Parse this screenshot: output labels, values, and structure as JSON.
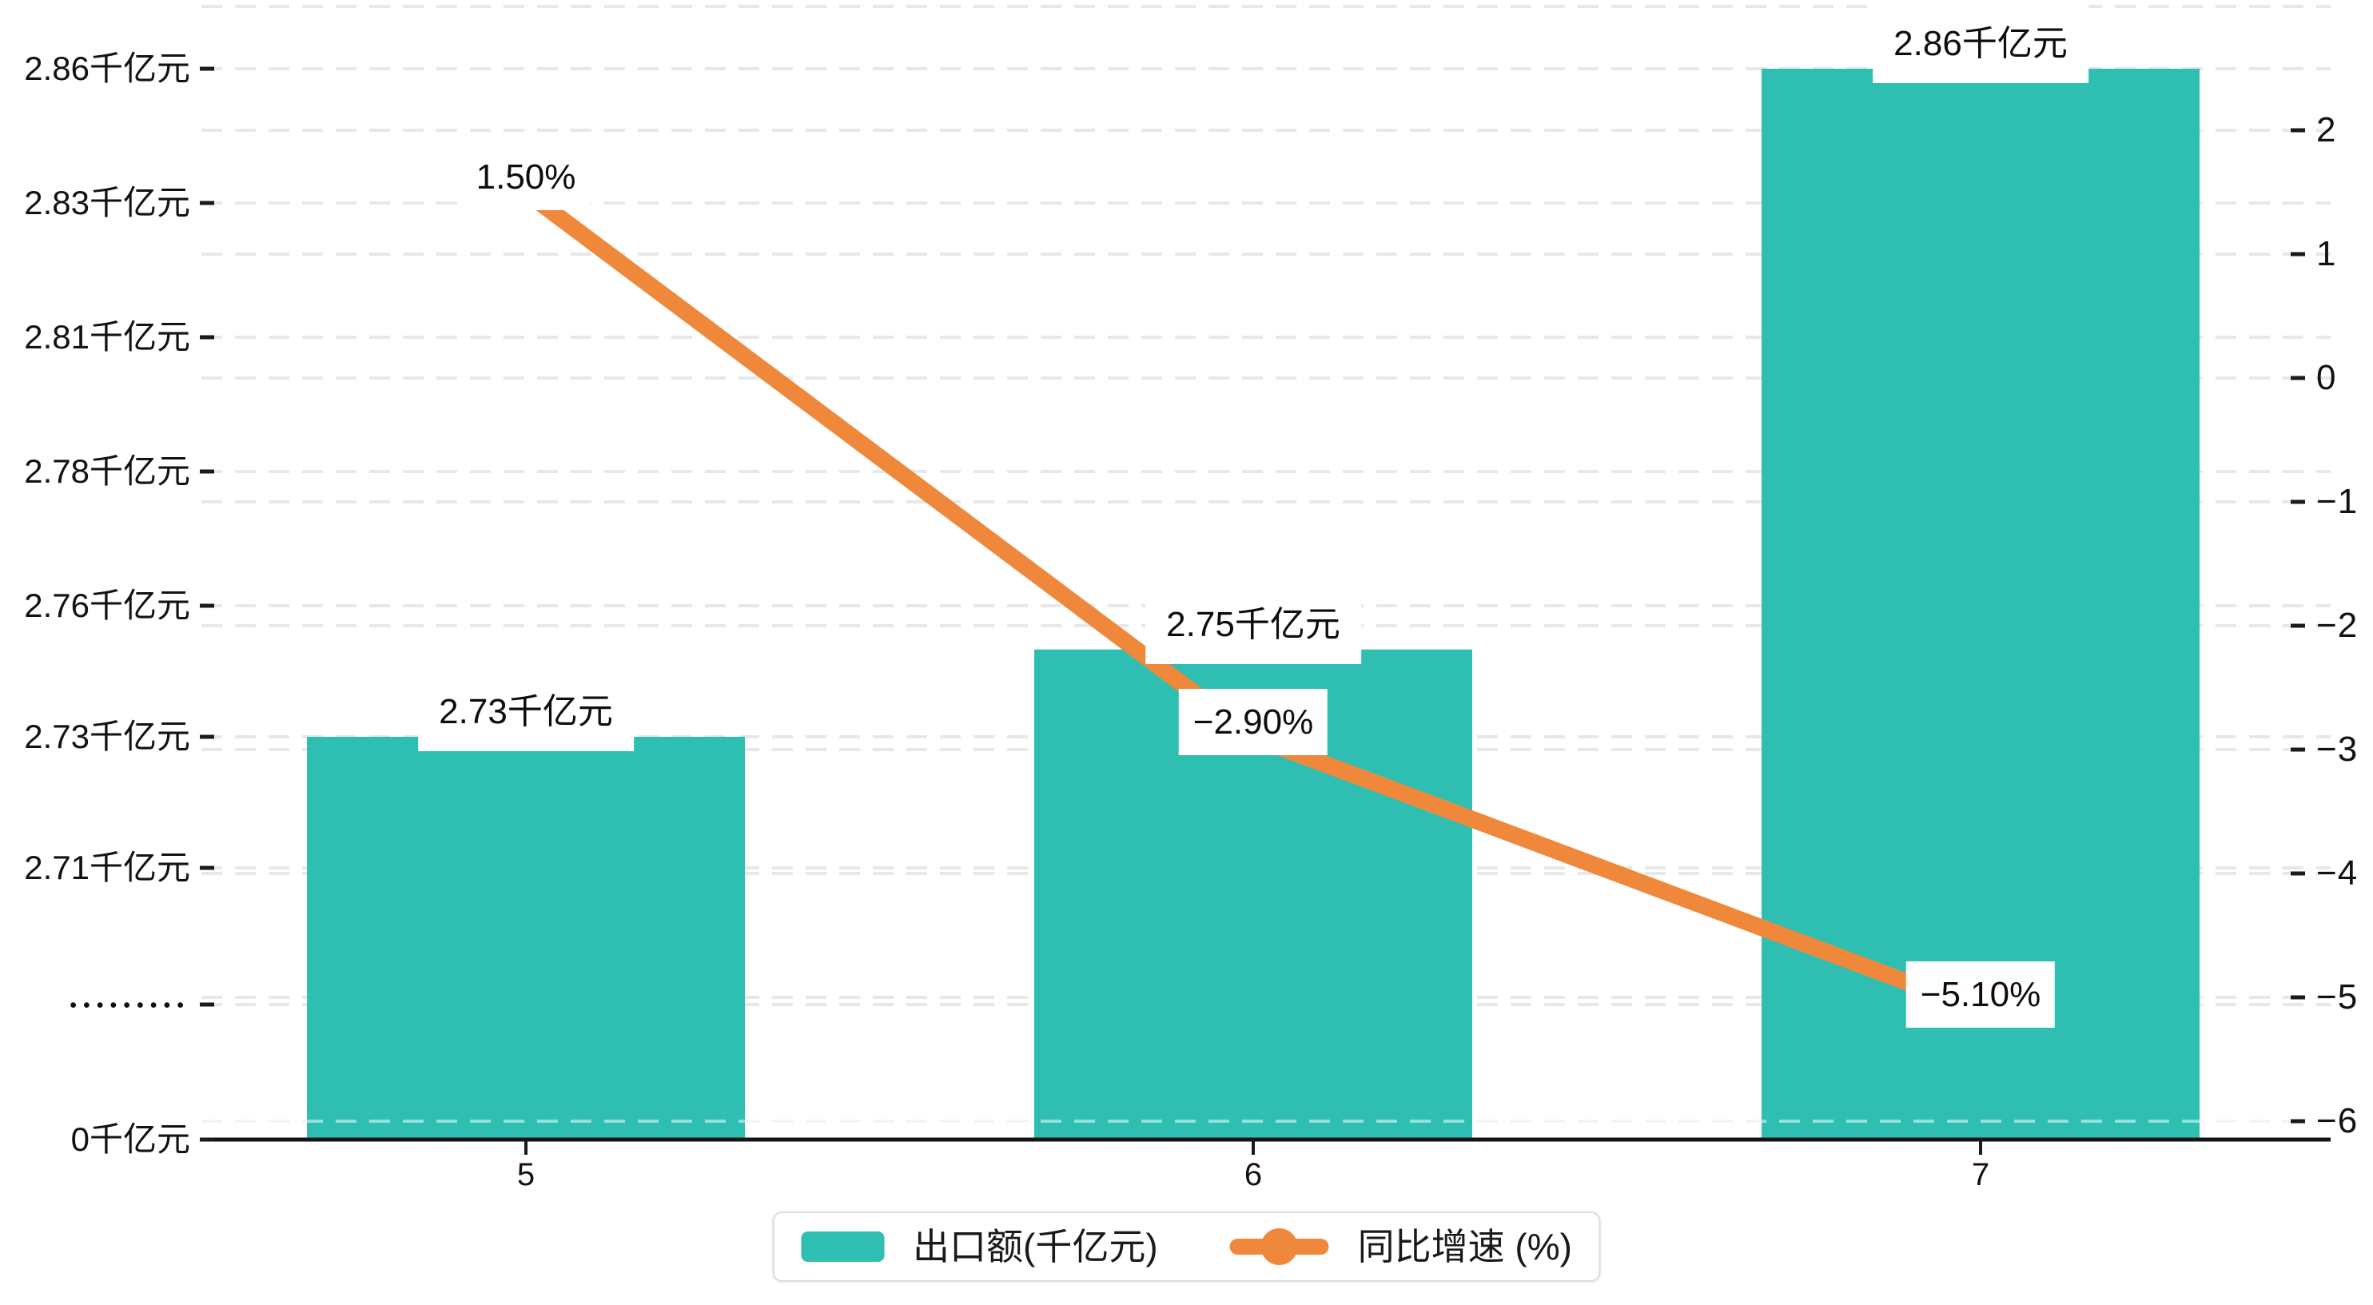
{
  "chart_data": {
    "type": "bar",
    "title": "",
    "categories": [
      "5",
      "6",
      "7"
    ],
    "series": [
      {
        "name": "出口额(千亿元)",
        "type": "bar",
        "axis": "left",
        "values": [
          2.73,
          2.75,
          2.86
        ],
        "labels": [
          "2.73千亿元",
          "2.75千亿元",
          "2.86千亿元"
        ],
        "color": "#2FBFB2"
      },
      {
        "name": "同比增速 (%)",
        "type": "line",
        "axis": "right",
        "values": [
          1.5,
          -2.9,
          -5.1
        ],
        "labels": [
          "1.50%",
          "−2.90%",
          "−5.10%"
        ],
        "color": "#F0883C"
      }
    ],
    "left_axis": {
      "broken": true,
      "tick_labels": [
        "0千亿元",
        "•••••••••",
        "2.71千亿元",
        "2.73千亿元",
        "2.76千亿元",
        "2.78千亿元",
        "2.81千亿元",
        "2.83千亿元",
        "2.86千亿元"
      ],
      "tick_values": [
        0,
        null,
        2.71,
        2.73,
        2.76,
        2.78,
        2.81,
        2.83,
        2.86
      ]
    },
    "right_axis": {
      "tick_labels": [
        "2",
        "1",
        "0",
        "−1",
        "−2",
        "−3",
        "−4",
        "−5",
        "−6"
      ],
      "tick_values": [
        2,
        1,
        0,
        -1,
        -2,
        -3,
        -4,
        -5,
        -6
      ],
      "range": [
        -6,
        3
      ]
    },
    "x_axis": {
      "tick_labels": [
        "5",
        "6",
        "7"
      ]
    },
    "grid": true,
    "legend": {
      "position": "bottom",
      "items": [
        {
          "label": "出口额(千亿元)",
          "marker": "rect",
          "color": "#2FBFB2"
        },
        {
          "label": "同比增速 (%)",
          "marker": "line-dot",
          "color": "#F0883C"
        }
      ]
    }
  },
  "colors": {
    "bar": "#2FBFB2",
    "line": "#F0883C",
    "axis": "#141414",
    "tick": "#1a1a1a",
    "grid": "#e8e8e8",
    "grid_over_bar": "rgba(255,255,255,0.5)",
    "text": "#121212"
  }
}
